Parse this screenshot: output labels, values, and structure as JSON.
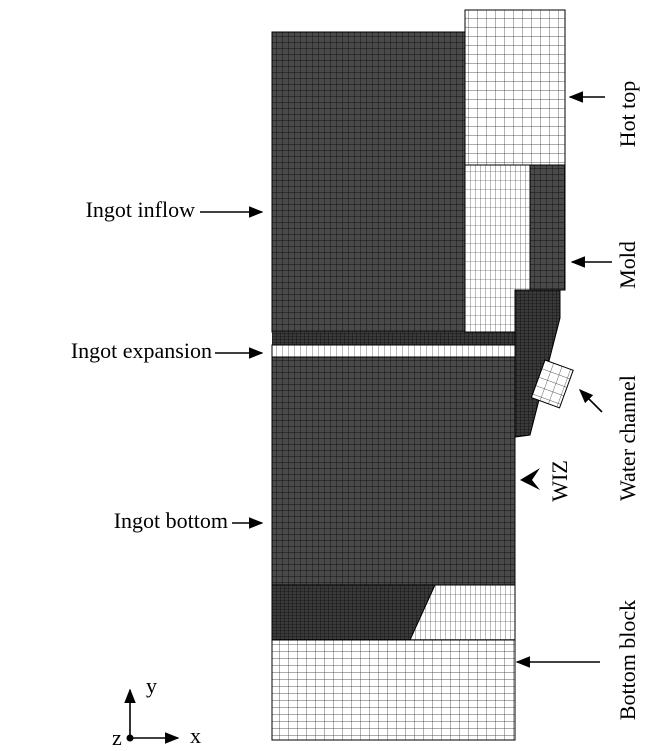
{
  "labels": {
    "ingot_inflow": "Ingot inflow",
    "ingot_expansion": "Ingot expansion",
    "ingot_bottom": "Ingot bottom",
    "hot_top": "Hot top",
    "mold": "Mold",
    "water_channel": "Water channel",
    "wiz": "WIZ",
    "bottom_block": "Bottom block"
  },
  "axes": {
    "x": "x",
    "y": "y",
    "z": "z"
  }
}
